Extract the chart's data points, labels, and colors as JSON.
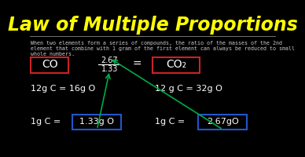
{
  "bg_color": "#000000",
  "title": "Law of Multiple Proportions",
  "title_color": "#FFFF00",
  "title_fontsize": 17,
  "divider_color": "#888888",
  "subtitle_line1": "When two elements form a series of compounds, the ratio of the masses of the 2nd",
  "subtitle_line2": "element that combine with 1 gram of the first element can always be reduced to small",
  "subtitle_line3": "whole numbers.",
  "subtitle_color": "#CCCCCC",
  "subtitle_fontsize": 4.8,
  "box1_text": "CO",
  "box1_color": "#CC2222",
  "box2_text": "CO₂",
  "box2_color": "#CC2222",
  "fraction_num": "2.67",
  "fraction_den": "1.33",
  "equals": "=",
  "line1_left": "12g C = 16g O",
  "line1_right": "12 g C = 32g O",
  "line2_left": "1g C =",
  "box3_text": "1.33g O",
  "box3_color": "#2255CC",
  "line2_right": "1g C =",
  "box4_text": "2.67gO",
  "box4_color": "#2255CC",
  "arrow1_color": "#00AA44",
  "arrow2_color": "#00AA44",
  "text_color": "#FFFFFF"
}
